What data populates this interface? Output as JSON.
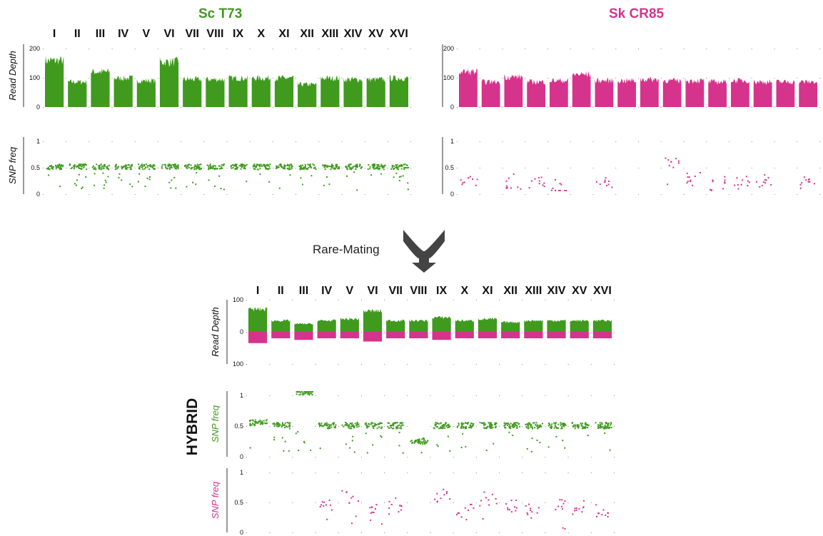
{
  "titles": {
    "sc": "Sc T73",
    "sk": "Sk CR85",
    "hybrid": "HYBRID"
  },
  "arrow_label": "Rare-Mating",
  "colors": {
    "sc": "#3f9a1e",
    "sk": "#d6338c",
    "axis": "#333333",
    "text": "#111111"
  },
  "chromosomes": [
    "I",
    "II",
    "III",
    "IV",
    "V",
    "VI",
    "VII",
    "VIII",
    "IX",
    "X",
    "XI",
    "XII",
    "XIII",
    "XIV",
    "XV",
    "XVI"
  ],
  "chart_data": [
    {
      "id": "sc_depth",
      "type": "area",
      "ylabel": "Read Depth",
      "yticks": [
        "200",
        "100",
        "0"
      ],
      "ylim": [
        0,
        250
      ],
      "series_color": "sc",
      "categories": [
        "I",
        "II",
        "III",
        "IV",
        "V",
        "VI",
        "VII",
        "VIII",
        "IX",
        "X",
        "XI",
        "XII",
        "XIII",
        "XIV",
        "XV",
        "XVI"
      ],
      "values": [
        185,
        100,
        140,
        115,
        105,
        180,
        110,
        110,
        115,
        115,
        115,
        90,
        115,
        110,
        110,
        115
      ]
    },
    {
      "id": "sc_snp",
      "type": "scatter",
      "ylabel": "SNP freq",
      "yticks": [
        "1",
        "0.5",
        "0"
      ],
      "ylim": [
        0,
        1
      ],
      "series_color": "sc",
      "categories": [
        "I",
        "II",
        "III",
        "IV",
        "V",
        "VI",
        "VII",
        "VIII",
        "IX",
        "X",
        "XI",
        "XII",
        "XIII",
        "XIV",
        "XV",
        "XVI"
      ],
      "values": [
        0.45,
        0.45,
        0.45,
        0.45,
        0.45,
        0.45,
        0.45,
        0.45,
        0.45,
        0.45,
        0.45,
        0.45,
        0.45,
        0.45,
        0.45,
        0.45
      ]
    },
    {
      "id": "sk_depth",
      "type": "area",
      "ylabel": "",
      "yticks": [
        "200",
        "100",
        "0"
      ],
      "ylim": [
        0,
        250
      ],
      "series_color": "sk",
      "categories": [
        "I",
        "II",
        "III",
        "IV",
        "V",
        "VI",
        "VII",
        "VIII",
        "IX",
        "X",
        "XI",
        "XII",
        "XIII",
        "XIV",
        "XV",
        "XVI"
      ],
      "values": [
        140,
        100,
        120,
        100,
        105,
        130,
        105,
        105,
        110,
        105,
        105,
        100,
        105,
        100,
        100,
        100
      ]
    },
    {
      "id": "sk_snp",
      "type": "scatter",
      "ylabel": "",
      "yticks": [
        "1",
        "0.5",
        "0"
      ],
      "ylim": [
        0,
        1
      ],
      "series_color": "sk",
      "categories": [
        "I",
        "II",
        "III",
        "IV",
        "V",
        "VI",
        "VII",
        "VIII",
        "IX",
        "X",
        "XI",
        "XII",
        "XIII",
        "XIV",
        "XV",
        "XVI"
      ],
      "values": [
        0.15,
        null,
        0.15,
        0.15,
        0.05,
        null,
        0.15,
        null,
        null,
        0.5,
        0.2,
        0.1,
        0.15,
        0.15,
        null,
        0.15
      ]
    },
    {
      "id": "hybrid_depth",
      "type": "area",
      "ylabel": "Read Depth",
      "yticks": [
        "100",
        "0",
        "100"
      ],
      "ylim": [
        -100,
        100
      ],
      "categories": [
        "I",
        "II",
        "III",
        "IV",
        "V",
        "VI",
        "VII",
        "VIII",
        "IX",
        "X",
        "XI",
        "XII",
        "XIII",
        "XIV",
        "XV",
        "XVI"
      ],
      "series": [
        {
          "color": "sc",
          "values": [
            70,
            35,
            25,
            35,
            40,
            65,
            35,
            35,
            45,
            35,
            40,
            30,
            35,
            35,
            35,
            35
          ]
        },
        {
          "color": "sk",
          "values": [
            -35,
            -20,
            -25,
            -20,
            -20,
            -30,
            -20,
            -20,
            -25,
            -20,
            -20,
            -20,
            -20,
            -20,
            -20,
            -20
          ]
        }
      ]
    },
    {
      "id": "hybrid_snp_sc",
      "type": "scatter",
      "ylabel": "SNP freq",
      "yticks": [
        "1",
        "0.5",
        "0"
      ],
      "ylim": [
        0,
        1
      ],
      "series_color": "sc",
      "categories": [
        "I",
        "II",
        "III",
        "IV",
        "V",
        "VI",
        "VII",
        "VIII",
        "IX",
        "X",
        "XI",
        "XII",
        "XIII",
        "XIV",
        "XV",
        "XVI"
      ],
      "values": [
        0.5,
        0.45,
        1.0,
        0.45,
        0.45,
        0.45,
        0.45,
        0.2,
        0.45,
        0.45,
        0.45,
        0.45,
        0.45,
        0.45,
        0.45,
        0.45
      ]
    },
    {
      "id": "hybrid_snp_sk",
      "type": "scatter",
      "ylabel": "SNP freq",
      "yticks": [
        "1",
        "0.5",
        "0"
      ],
      "ylim": [
        0,
        1
      ],
      "series_color": "sk",
      "categories": [
        "I",
        "II",
        "III",
        "IV",
        "V",
        "VI",
        "VII",
        "VIII",
        "IX",
        "X",
        "XI",
        "XII",
        "XIII",
        "XIV",
        "XV",
        "XVI"
      ],
      "values": [
        null,
        null,
        null,
        0.4,
        0.55,
        0.3,
        0.4,
        null,
        0.55,
        0.3,
        0.5,
        0.4,
        0.3,
        0.4,
        0.35,
        0.3
      ]
    }
  ]
}
